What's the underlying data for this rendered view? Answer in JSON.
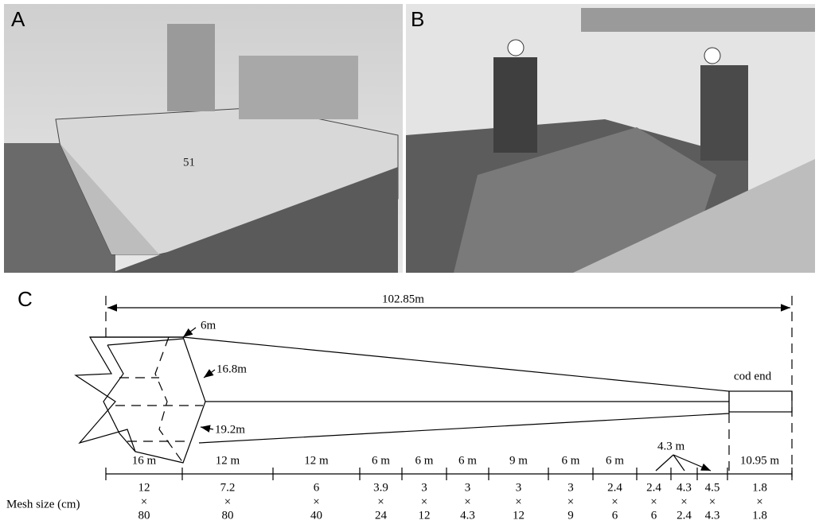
{
  "panels": {
    "a": {
      "label": "A"
    },
    "b": {
      "label": "B"
    },
    "c": {
      "label": "C"
    }
  },
  "net": {
    "total_length": "102.85m",
    "dimensions": [
      "6m",
      "16.8m",
      "19.2m"
    ],
    "cod_end": "cod end",
    "callout": "4.3 m",
    "times": "×",
    "mesh_label": "Mesh size (cm)"
  },
  "segments": [
    {
      "length": "16 m",
      "mesh": [
        "12",
        "80"
      ]
    },
    {
      "length": "12 m",
      "mesh": [
        "7.2",
        "80"
      ]
    },
    {
      "length": "12 m",
      "mesh": [
        "6",
        "40"
      ]
    },
    {
      "length": "6 m",
      "mesh": [
        "3.9",
        "24"
      ]
    },
    {
      "length": "6 m",
      "mesh": [
        "3",
        "12"
      ]
    },
    {
      "length": "6 m",
      "mesh": [
        "3",
        "4.3"
      ]
    },
    {
      "length": "9 m",
      "mesh": [
        "3",
        "12"
      ]
    },
    {
      "length": "6 m",
      "mesh": [
        "3",
        "9"
      ]
    },
    {
      "length": "6 m",
      "mesh": [
        "2.4",
        "6"
      ]
    },
    {
      "mesh": [
        "2.4",
        "6"
      ]
    },
    {
      "mesh": [
        "4.3",
        "2.4"
      ]
    },
    {
      "mesh": [
        "4.5",
        "4.3"
      ]
    },
    {
      "length": "10.95 m",
      "mesh": [
        "1.8",
        "1.8"
      ]
    }
  ]
}
